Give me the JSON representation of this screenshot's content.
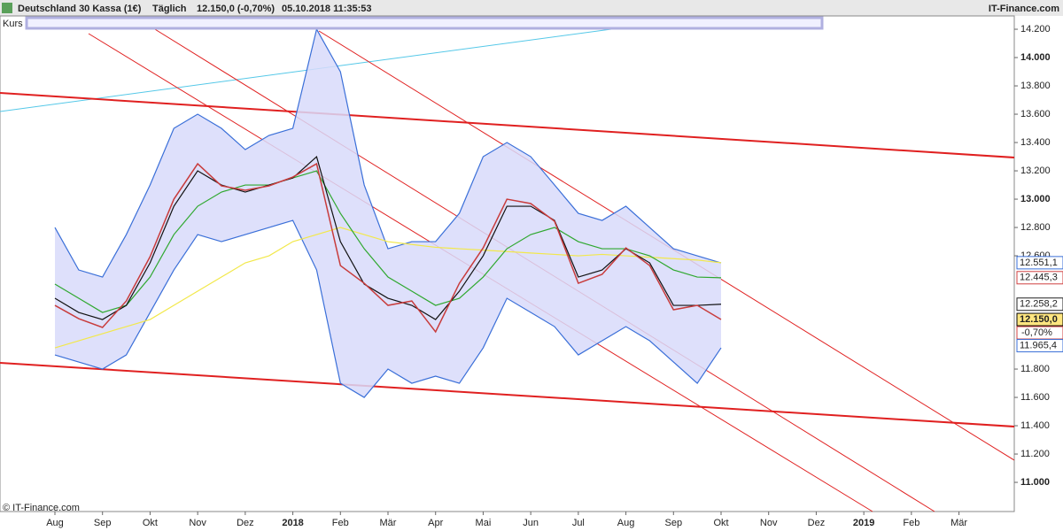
{
  "header": {
    "instrument": "Deutschland 30 Kassa (1€)",
    "interval": "Täglich",
    "quote": "12.150,0 (-0,70%)",
    "timestamp": "05.10.2018 11:35:53",
    "brand": "IT-Finance.com"
  },
  "footer": {
    "copyright": "© IT-Finance.com"
  },
  "chart_data": {
    "type": "line",
    "legend": "Kurs",
    "categories": [
      "Aug",
      null,
      "Sep",
      null,
      "Okt",
      null,
      "Nov",
      null,
      "Dez",
      null,
      "2018",
      null,
      "Feb",
      null,
      "Mär",
      null,
      "Apr",
      null,
      "Mai",
      null,
      "Jun",
      null,
      "Jul",
      null,
      "Aug",
      null,
      "Sep",
      null,
      "Okt",
      null,
      "Nov",
      null,
      "Dez",
      null,
      "2019",
      null,
      "Feb",
      null,
      "Mär",
      null
    ],
    "bold_categories": [
      "2018",
      "2019"
    ],
    "series": [
      {
        "color": "#3a6fd8",
        "role": "upper",
        "values": [
          12800,
          12500,
          12450,
          12750,
          13100,
          13500,
          13600,
          13500,
          13350,
          13450,
          13500,
          14200,
          13900,
          13100,
          12650,
          12700,
          12700,
          12900,
          13300,
          13400,
          13300,
          13100,
          12900,
          12850,
          12950,
          12800,
          12650,
          12600,
          12550,
          null,
          null,
          null,
          null,
          null,
          null,
          null,
          null,
          null,
          null,
          null
        ]
      },
      {
        "color": "#3a6fd8",
        "role": "lower",
        "values": [
          11900,
          11850,
          11800,
          11900,
          12200,
          12500,
          12750,
          12700,
          12750,
          12800,
          12850,
          12500,
          11700,
          11600,
          11800,
          11700,
          11750,
          11700,
          11950,
          12300,
          12200,
          12100,
          11900,
          12000,
          12100,
          12000,
          11850,
          11700,
          11950,
          null,
          null,
          null,
          null,
          null,
          null,
          null,
          null,
          null,
          null,
          null
        ]
      },
      {
        "color": "#f2e84a",
        "values": [
          11950,
          12000,
          12050,
          12100,
          12150,
          12250,
          12350,
          12450,
          12550,
          12600,
          12700,
          12750,
          12800,
          12750,
          12700,
          12680,
          12660,
          12650,
          12640,
          12630,
          12620,
          12610,
          12600,
          12610,
          12600,
          12590,
          12580,
          12570,
          12551,
          null,
          null,
          null,
          null,
          null,
          null,
          null,
          null,
          null,
          null,
          null
        ]
      },
      {
        "color": "#2fa82f",
        "values": [
          12400,
          12300,
          12200,
          12250,
          12450,
          12750,
          12950,
          13050,
          13100,
          13100,
          13150,
          13200,
          12900,
          12650,
          12450,
          12350,
          12250,
          12300,
          12450,
          12650,
          12750,
          12800,
          12700,
          12650,
          12650,
          12600,
          12500,
          12450,
          12445,
          null,
          null,
          null,
          null,
          null,
          null,
          null,
          null,
          null,
          null,
          null
        ]
      },
      {
        "color": "#111111",
        "values": [
          12300,
          12200,
          12150,
          12250,
          12550,
          12950,
          13200,
          13100,
          13050,
          13100,
          13150,
          13300,
          12700,
          12400,
          12300,
          12250,
          12150,
          12350,
          12600,
          12950,
          12950,
          12850,
          12450,
          12500,
          12650,
          12550,
          12250,
          12250,
          12258,
          null,
          null,
          null,
          null,
          null,
          null,
          null,
          null,
          null,
          null,
          null
        ]
      },
      {
        "name": "Kurs",
        "color": "#c83c3c",
        "values": [
          12250,
          12156,
          12094,
          12281,
          12594,
          13000,
          13250,
          13094,
          13063,
          13094,
          13156,
          13250,
          12531,
          12406,
          12250,
          12281,
          12063,
          12406,
          12656,
          13000,
          12969,
          12844,
          12406,
          12469,
          12656,
          12531,
          12219,
          12250,
          12150,
          null,
          null,
          null,
          null,
          null,
          null,
          null,
          null,
          null,
          null,
          null
        ]
      }
    ],
    "ylim": [
      10794,
      14294
    ],
    "yticks": [
      {
        "value": 11000,
        "label": "11.000"
      },
      {
        "value": 11200,
        "label": "11.200"
      },
      {
        "value": 11400,
        "label": "11.400"
      },
      {
        "value": 11600,
        "label": "11.600"
      },
      {
        "value": 11800,
        "label": "11.800"
      },
      {
        "value": 12600,
        "label": "12.600"
      },
      {
        "value": 12800,
        "label": "12.800"
      },
      {
        "value": 13000,
        "label": "13.000"
      },
      {
        "value": 13200,
        "label": "13.200"
      },
      {
        "value": 13400,
        "label": "13.400"
      },
      {
        "value": 13600,
        "label": "13.600"
      },
      {
        "value": 13800,
        "label": "13.800"
      },
      {
        "value": 14000,
        "label": "14.000"
      },
      {
        "value": 14200,
        "label": "14.200"
      }
    ],
    "bold_yticks": [
      11000,
      13000,
      14000
    ],
    "price_labels": [
      {
        "value": 12551.1,
        "label": "12.551,1",
        "color": "#3a6fd8"
      },
      {
        "value": 12445.3,
        "label": "12.445,3",
        "color": "#d04040"
      },
      {
        "value": 12258.2,
        "label": "12.258,2",
        "color": "#222222"
      },
      {
        "value": 12150.0,
        "label": "12.150,0",
        "color": "#000000",
        "background": "#ffe680"
      },
      {
        "value": 11965.4,
        "label": "11.965,4",
        "color": "#3a6fd8"
      }
    ],
    "change_label": "-0,70%"
  }
}
